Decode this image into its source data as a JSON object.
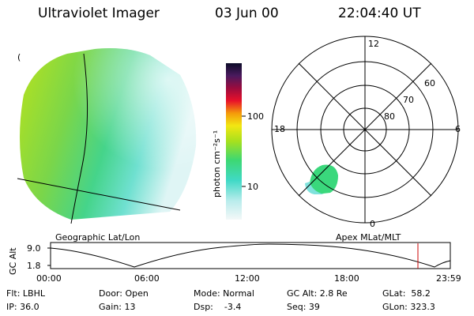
{
  "header": {
    "title": "Ultraviolet Imager",
    "date": "03 Jun 00",
    "time": "22:04:40 UT"
  },
  "geographic_panel": {
    "label": "Geographic Lat/Lon",
    "corner_mark": "("
  },
  "colorbar": {
    "unit_label": "photon cm⁻²s⁻¹",
    "ticks": [
      "100",
      "10"
    ],
    "scale": "log"
  },
  "polar_panel": {
    "label": "Apex MLat/MLT",
    "mlt_labels": {
      "top": "12",
      "left": "18",
      "right": "6",
      "bottom": "0"
    },
    "lat_rings": [
      "60",
      "70",
      "80"
    ]
  },
  "altitude_plot": {
    "ylabel": "GC Alt",
    "yticks": [
      "9.0",
      "1.8"
    ],
    "xticks": [
      "00:00",
      "06:00",
      "12:00",
      "18:00",
      "23:59"
    ],
    "current_time_fraction": 0.919
  },
  "status": {
    "filter": "Flt: LBHL",
    "ip": "IP: 36.0",
    "door": "Door: Open",
    "gain": "Gain: 13",
    "mode": "Mode: Normal",
    "dsp": "Dsp:    -3.4",
    "gc_alt": "GC Alt: 2.8 Re",
    "seq": "Seq: 39",
    "glat": "GLat:  58.2",
    "glon": "GLon: 323.3"
  },
  "colors": {
    "dayside_bright": "#b5e61d",
    "mid": "#3ddc84",
    "dim": "#7fe8d8",
    "faint": "#d8f4f4",
    "time_marker": "#cc0000"
  }
}
